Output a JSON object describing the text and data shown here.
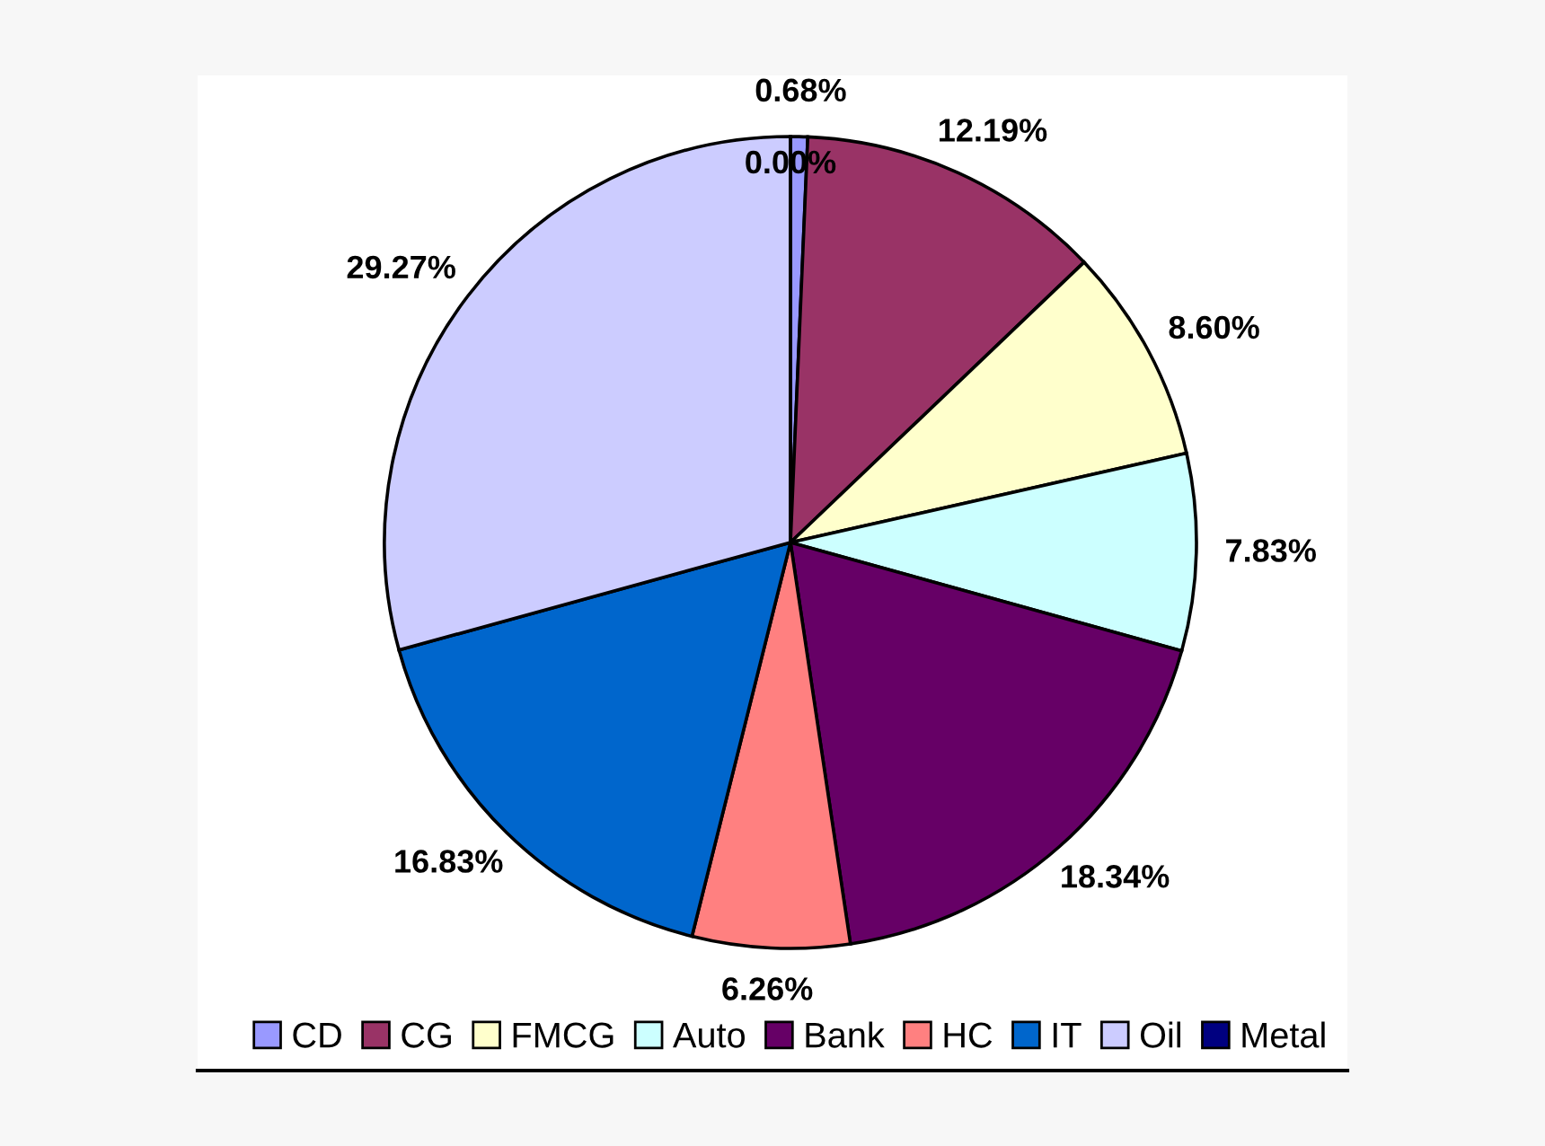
{
  "chart_data": {
    "type": "pie",
    "categories": [
      "CD",
      "CG",
      "FMCG",
      "Auto",
      "Bank",
      "HC",
      "IT",
      "Oil",
      "Metal"
    ],
    "values": [
      0.68,
      12.19,
      8.6,
      7.83,
      18.34,
      6.26,
      16.83,
      29.27,
      0.0
    ],
    "value_labels": [
      "0.68%",
      "12.19%",
      "8.60%",
      "7.83%",
      "18.34%",
      "6.26%",
      "16.83%",
      "29.27%",
      "0.00%"
    ],
    "colors": [
      "#9999ff",
      "#993366",
      "#ffffcc",
      "#ccffff",
      "#660066",
      "#ff8080",
      "#0066cc",
      "#ccccff",
      "#000080"
    ],
    "legend": "bottom"
  }
}
